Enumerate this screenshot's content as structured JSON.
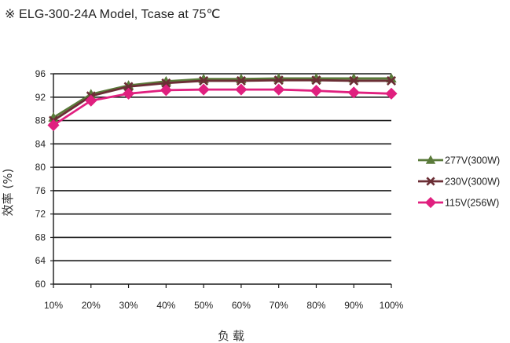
{
  "title": "※ ELG-300-24A Model, Tcase at 75℃",
  "chart_data": {
    "type": "line",
    "title": "※ ELG-300-24A Model, Tcase at 75℃",
    "xlabel": "负载",
    "ylabel": "效率 (%)",
    "categories": [
      "10%",
      "20%",
      "30%",
      "40%",
      "50%",
      "60%",
      "70%",
      "80%",
      "90%",
      "100%"
    ],
    "ylim": [
      60,
      96
    ],
    "yticks": [
      60,
      64,
      68,
      72,
      76,
      80,
      84,
      88,
      92,
      96
    ],
    "grid": "horizontal",
    "legend_position": "right",
    "series": [
      {
        "name": "277V(300W)",
        "color": "#5a7a3a",
        "marker": "triangle",
        "values": [
          88.5,
          92.5,
          94.0,
          94.7,
          95.1,
          95.1,
          95.2,
          95.2,
          95.2,
          95.2
        ]
      },
      {
        "name": "230V(300W)",
        "color": "#6b2e35",
        "marker": "x",
        "values": [
          88.0,
          92.2,
          93.8,
          94.4,
          94.8,
          94.8,
          94.9,
          94.9,
          94.8,
          94.8
        ]
      },
      {
        "name": "115V(256W)",
        "color": "#e0207f",
        "marker": "diamond",
        "values": [
          87.2,
          91.4,
          92.6,
          93.2,
          93.3,
          93.3,
          93.3,
          93.1,
          92.8,
          92.6
        ]
      }
    ]
  }
}
